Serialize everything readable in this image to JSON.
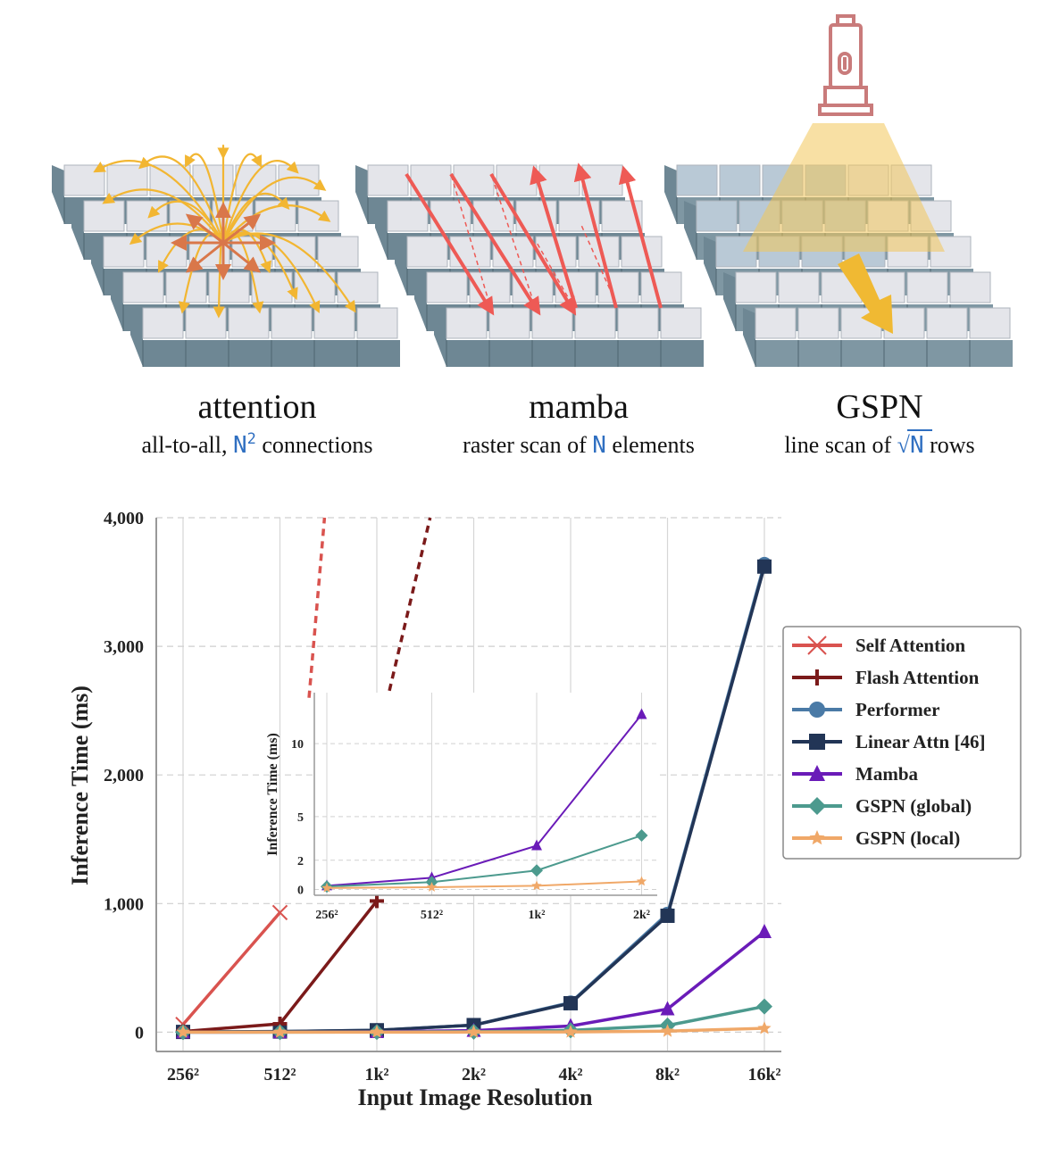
{
  "diagrams": [
    {
      "title": "attention",
      "caption_pre": "all-to-all, ",
      "caption_var": "N",
      "caption_sup": "2",
      "caption_post": " connections"
    },
    {
      "title": "mamba",
      "caption_pre": "raster scan of ",
      "caption_var": "N",
      "caption_sup": "",
      "caption_post": " elements"
    },
    {
      "title": "GSPN",
      "caption_pre": "line scan of ",
      "caption_var": "N",
      "caption_sup": "",
      "caption_post": " rows"
    }
  ],
  "colors": {
    "highlight_var": "#2f6fc1",
    "self_attention": "#d9534f",
    "flash_attention": "#7b1a1a",
    "performer": "#4a7aa6",
    "linear_attn": "#223556",
    "mamba": "#6a1bb8",
    "gspn_global": "#4c9a8e",
    "gspn_local": "#f0a868",
    "arrow_attention": "#f2b632",
    "arrow_mamba": "#ee5a55",
    "lamp": "#c97b7b",
    "cube_top": "#e4e5ea",
    "cube_side": "#6e8794"
  },
  "chart_data": {
    "type": "line",
    "xlabel": "Input Image Resolution",
    "ylabel": "Inference Time (ms)",
    "categories": [
      "256²",
      "512²",
      "1k²",
      "2k²",
      "4k²",
      "8k²",
      "16k²"
    ],
    "ylim": [
      -150,
      4000
    ],
    "yticks": [
      0,
      1000,
      2000,
      3000,
      4000
    ],
    "ytick_labels": [
      "0",
      "1,000",
      "2,000",
      "3,000",
      "4,000"
    ],
    "legend_position": "right",
    "series": [
      {
        "name": "Self Attention",
        "color_key": "self_attention",
        "marker": "x",
        "values": [
          60,
          930,
          null,
          null,
          null,
          null,
          null
        ],
        "extrapolated": [
          [
            1.3,
            2600
          ],
          [
            1.46,
            4000
          ]
        ]
      },
      {
        "name": "Flash Attention",
        "color_key": "flash_attention",
        "marker": "plus",
        "values": [
          5,
          65,
          1020,
          null,
          null,
          null,
          null
        ],
        "extrapolated": [
          [
            2.1,
            2560
          ],
          [
            2.55,
            4000
          ]
        ]
      },
      {
        "name": "Performer",
        "color_key": "performer",
        "marker": "circle",
        "values": [
          2,
          5,
          15,
          55,
          230,
          920,
          3640
        ]
      },
      {
        "name": "Linear Attn [46]",
        "color_key": "linear_attn",
        "marker": "square",
        "values": [
          2,
          5,
          15,
          55,
          225,
          905,
          3620
        ]
      },
      {
        "name": "Mamba",
        "color_key": "mamba",
        "marker": "triangle",
        "values": [
          0.25,
          0.8,
          3,
          12,
          48,
          180,
          780
        ]
      },
      {
        "name": "GSPN (global)",
        "color_key": "gspn_global",
        "marker": "diamond",
        "values": [
          0.2,
          0.5,
          1.3,
          3.7,
          14,
          52,
          200
        ]
      },
      {
        "name": "GSPN (local)",
        "color_key": "gspn_local",
        "marker": "star",
        "values": [
          0.1,
          0.15,
          0.25,
          0.55,
          2,
          8,
          30
        ]
      }
    ],
    "inset": {
      "ylabel": "Inference Time (ms)",
      "categories": [
        "256²",
        "512²",
        "1k²",
        "2k²"
      ],
      "yticks": [
        0,
        2,
        5,
        10
      ],
      "ylim": [
        -0.4,
        13.5
      ],
      "series_names": [
        "Mamba",
        "GSPN (global)",
        "GSPN (local)"
      ]
    }
  }
}
